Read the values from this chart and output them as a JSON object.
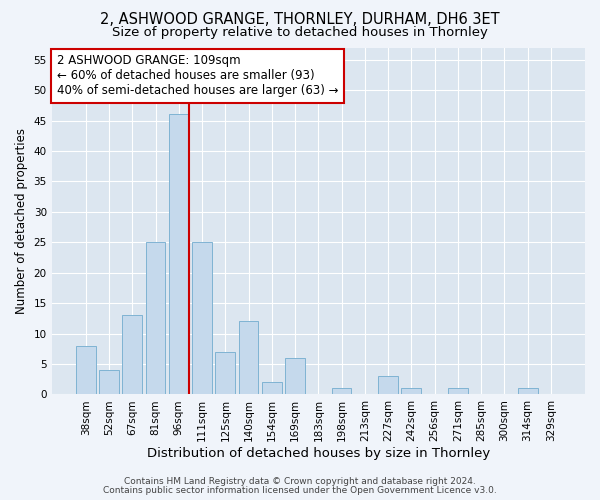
{
  "title": "2, ASHWOOD GRANGE, THORNLEY, DURHAM, DH6 3ET",
  "subtitle": "Size of property relative to detached houses in Thornley",
  "xlabel": "Distribution of detached houses by size in Thornley",
  "ylabel": "Number of detached properties",
  "bar_labels": [
    "38sqm",
    "52sqm",
    "67sqm",
    "81sqm",
    "96sqm",
    "111sqm",
    "125sqm",
    "140sqm",
    "154sqm",
    "169sqm",
    "183sqm",
    "198sqm",
    "213sqm",
    "227sqm",
    "242sqm",
    "256sqm",
    "271sqm",
    "285sqm",
    "300sqm",
    "314sqm",
    "329sqm"
  ],
  "bar_values": [
    8,
    4,
    13,
    25,
    46,
    25,
    7,
    12,
    2,
    6,
    0,
    1,
    0,
    3,
    1,
    0,
    1,
    0,
    0,
    1,
    0
  ],
  "bar_color": "#c5d9ec",
  "bar_edge_color": "#7fb3d3",
  "ylim": [
    0,
    57
  ],
  "yticks": [
    0,
    5,
    10,
    15,
    20,
    25,
    30,
    35,
    40,
    45,
    50,
    55
  ],
  "vline_color": "#cc0000",
  "vline_bar_index": 4,
  "annotation_text": "2 ASHWOOD GRANGE: 109sqm\n← 60% of detached houses are smaller (93)\n40% of semi-detached houses are larger (63) →",
  "annotation_box_color": "#ffffff",
  "annotation_box_edge_color": "#cc0000",
  "footnote1": "Contains HM Land Registry data © Crown copyright and database right 2024.",
  "footnote2": "Contains public sector information licensed under the Open Government Licence v3.0.",
  "background_color": "#f0f4fa",
  "plot_background_color": "#dce6f0",
  "grid_color": "#ffffff",
  "title_fontsize": 10.5,
  "subtitle_fontsize": 9.5,
  "xlabel_fontsize": 9.5,
  "ylabel_fontsize": 8.5,
  "tick_fontsize": 7.5,
  "annotation_fontsize": 8.5,
  "footnote_fontsize": 6.5
}
